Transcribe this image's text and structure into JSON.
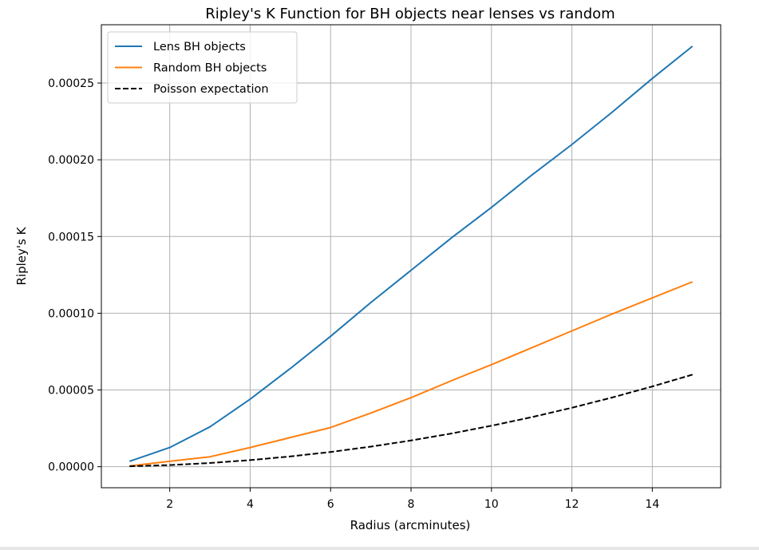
{
  "chart_data": {
    "type": "line",
    "title": "Ripley's K Function for BH objects near lenses vs random",
    "xlabel": "Radius (arcminutes)",
    "ylabel": "Ripley's K",
    "xlim": [
      0.3,
      15.7
    ],
    "ylim": [
      -1.37e-05,
      0.000288
    ],
    "xticks": [
      2,
      4,
      6,
      8,
      10,
      12,
      14
    ],
    "xtick_labels": [
      "2",
      "4",
      "6",
      "8",
      "10",
      "12",
      "14"
    ],
    "yticks": [
      0,
      5e-05,
      0.0001,
      0.00015,
      0.0002,
      0.00025
    ],
    "ytick_labels": [
      "0.00000",
      "0.00005",
      "0.00010",
      "0.00015",
      "0.00020",
      "0.00025"
    ],
    "grid": true,
    "legend_position": "top-left",
    "x": [
      1,
      2,
      3,
      4,
      5,
      6,
      7,
      8,
      9,
      10,
      11,
      12,
      13,
      14,
      15
    ],
    "series": [
      {
        "name": "Lens BH objects",
        "color": "#1f77b4",
        "dash": "solid",
        "values": [
          3.5e-06,
          1.25e-05,
          2.6e-05,
          4.4e-05,
          6.4e-05,
          8.5e-05,
          0.000107,
          0.000128,
          0.000149,
          0.000169,
          0.00019,
          0.00021,
          0.000231,
          0.000253,
          0.000274
        ]
      },
      {
        "name": "Random BH objects",
        "color": "#ff7f0e",
        "dash": "solid",
        "values": [
          5e-07,
          3.5e-06,
          6.5e-06,
          1.25e-05,
          1.9e-05,
          2.55e-05,
          3.5e-05,
          4.5e-05,
          5.6e-05,
          6.65e-05,
          7.75e-05,
          8.85e-05,
          9.95e-05,
          0.00011,
          0.0001205
        ]
      },
      {
        "name": "Poisson expectation",
        "color": "#000000",
        "dash": "dashed",
        "values": [
          2.7e-07,
          1.07e-06,
          2.4e-06,
          4.3e-06,
          6.7e-06,
          9.6e-06,
          1.31e-05,
          1.71e-05,
          2.16e-05,
          2.67e-05,
          3.23e-05,
          3.84e-05,
          4.51e-05,
          5.23e-05,
          6e-05
        ]
      }
    ]
  }
}
